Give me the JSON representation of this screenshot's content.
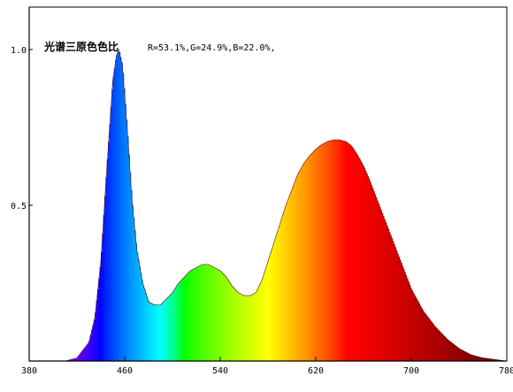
{
  "chart_data": {
    "type": "area",
    "title": "光谱三原色色比",
    "ratio_text": "R=53.1%,G=24.9%,B=22.0%,",
    "xlabel": "",
    "ylabel": "",
    "xlim": [
      380,
      780
    ],
    "ylim": [
      0,
      1.0
    ],
    "x_ticks": [
      "380",
      "460",
      "540",
      "620",
      "700",
      "780"
    ],
    "y_ticks": [
      "1.0",
      "0.5"
    ],
    "x_tick_values": [
      380,
      460,
      540,
      620,
      700,
      780
    ],
    "y_tick_values": [
      1.0,
      0.5
    ],
    "grid": false,
    "fill": "spectral-colors",
    "series": [
      {
        "x": [
          410,
          420,
          430,
          435,
          440,
          445,
          450,
          453,
          455,
          458,
          462,
          466,
          470,
          475,
          480,
          485,
          490,
          495,
          500,
          505,
          510,
          515,
          520,
          525,
          530,
          535,
          540,
          545,
          550,
          555,
          560,
          565,
          570,
          575,
          580,
          585,
          590,
          595,
          600,
          605,
          610,
          615,
          620,
          625,
          630,
          635,
          640,
          645,
          650,
          655,
          660,
          665,
          670,
          675,
          680,
          685,
          690,
          695,
          700,
          710,
          720,
          730,
          740,
          750,
          760,
          770,
          780
        ],
        "y": [
          0.0,
          0.01,
          0.06,
          0.14,
          0.32,
          0.62,
          0.9,
          0.98,
          1.0,
          0.95,
          0.75,
          0.52,
          0.36,
          0.25,
          0.19,
          0.18,
          0.18,
          0.2,
          0.22,
          0.25,
          0.27,
          0.29,
          0.3,
          0.31,
          0.31,
          0.3,
          0.29,
          0.27,
          0.24,
          0.22,
          0.21,
          0.21,
          0.22,
          0.26,
          0.32,
          0.38,
          0.44,
          0.5,
          0.55,
          0.6,
          0.635,
          0.66,
          0.68,
          0.695,
          0.705,
          0.71,
          0.71,
          0.705,
          0.69,
          0.66,
          0.625,
          0.58,
          0.53,
          0.48,
          0.43,
          0.38,
          0.33,
          0.28,
          0.23,
          0.16,
          0.11,
          0.07,
          0.04,
          0.02,
          0.01,
          0.005,
          0.0
        ]
      }
    ]
  }
}
